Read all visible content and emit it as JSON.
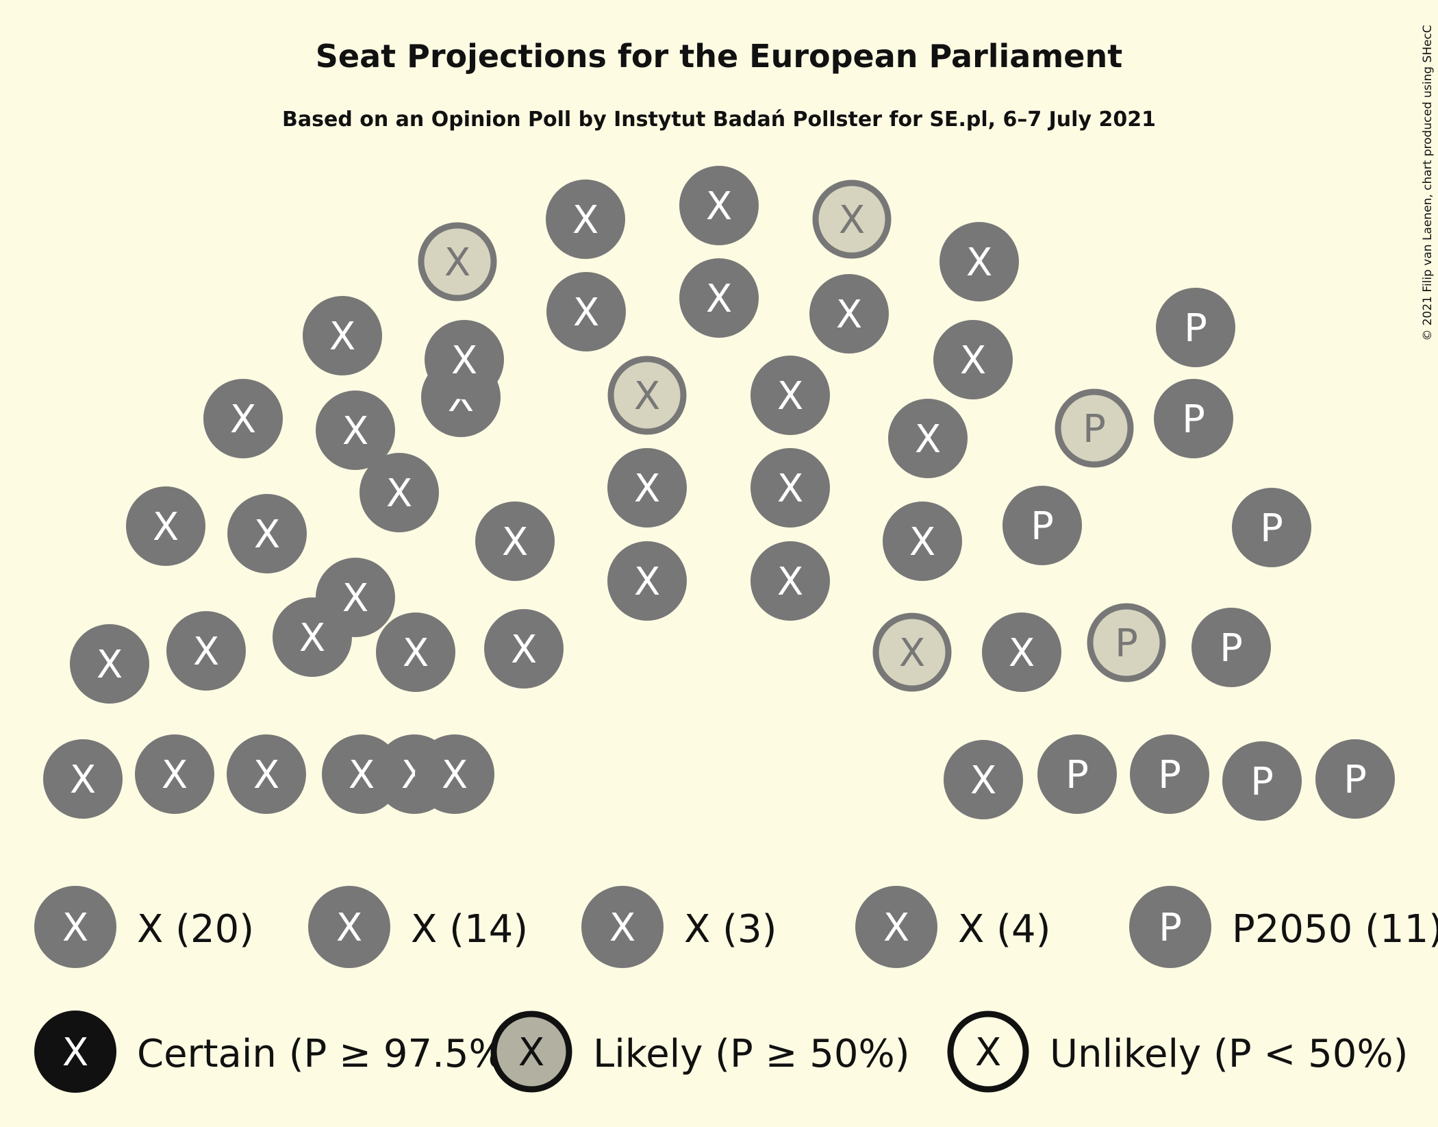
{
  "chart_data": {
    "type": "parliament",
    "title": "Seat Projections for the European Parliament",
    "subtitle": "Based on an Opinion Poll by Instytut Badań Pollster for SE.pl, 6–7 July 2021",
    "copyright": "© 2021 Filip van Laenen, chart produced using SHecC",
    "total_seats": 52,
    "parties": [
      {
        "symbol": "X",
        "legend_label": "X (20)",
        "seats": 20,
        "likely_seats": 1
      },
      {
        "symbol": "X",
        "legend_label": "X (14)",
        "seats": 14,
        "likely_seats": 2
      },
      {
        "symbol": "X",
        "legend_label": "X (3)",
        "seats": 3,
        "likely_seats": 1
      },
      {
        "symbol": "X",
        "legend_label": "X (4)",
        "seats": 4,
        "likely_seats": 1
      },
      {
        "symbol": "P",
        "legend_label": "P2050 (11)",
        "seats": 11,
        "likely_seats": 2
      }
    ],
    "probability_legend": [
      {
        "key": "certain",
        "symbol": "X",
        "label": "Certain (P ≥ 97.5%)"
      },
      {
        "key": "likely",
        "symbol": "X",
        "label": "Likely (P ≥ 50%)"
      },
      {
        "key": "unlikely",
        "symbol": "X",
        "label": "Unlikely (P < 50%)"
      }
    ],
    "colors": {
      "background": "#FEFBE3",
      "seat_fill": "#777777",
      "likely_fill": "#D6D3BF",
      "likely_stroke": "#777777",
      "seat_text": "#FFFFFF",
      "likely_text": "#777777",
      "certain_fill": "#111111",
      "legend_likely_fill": "#B2B0A0",
      "text": "#111111"
    }
  }
}
